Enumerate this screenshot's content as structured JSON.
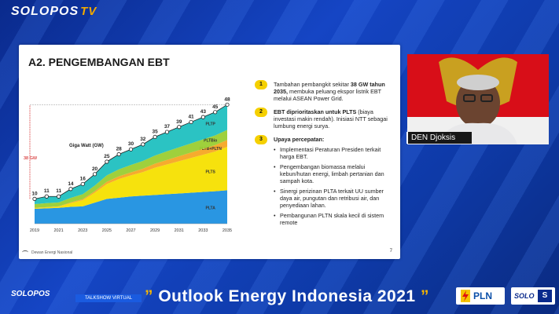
{
  "broadcast": {
    "logo_text": "SOLOPOS",
    "logo_tv": "TV",
    "lower_logo": "SOLOPOS",
    "lower_sub": "TALKSHOW VIRTUAL",
    "headline_open": "”",
    "headline": "Outlook Energy Indonesia 2021",
    "headline_close": "”",
    "sponsor_pln": "PLN",
    "sponsor_solo": "SOLO",
    "sponsor_solo_badge": "S"
  },
  "participant": {
    "name": "DEN Djoksis"
  },
  "slide": {
    "title": "A2. PENGEMBANGAN EBT",
    "footer": "Dewan Energi Nasional",
    "page": "7",
    "notes": [
      {
        "num": "1",
        "bold": "38 GW tahun 2035,",
        "pre": "Tambahan pembangkit sekitar ",
        "post": " membuka peluang ekspor listrik EBT melalui ASEAN Power Grid."
      },
      {
        "num": "2",
        "bold": "EBT diprioritaskan untuk PLTS",
        "pre": "",
        "post": " (biaya investasi makin rendah). Inisiasi NTT sebagai lumbung energi surya."
      },
      {
        "num": "3",
        "bold": "Upaya percepatan:",
        "pre": "",
        "post": ""
      }
    ],
    "bullets": [
      "Implementasi Peraturan Presiden terkait harga EBT.",
      "Pengembangan biomassa melalui kebun/hutan energi, limbah pertanian dan sampah kota.",
      "Sinergi perizinan PLTA terkait UU sumber daya air, pungutan dan retribusi air, dan penyediaan lahan.",
      "Pembangunan PLTN skala kecil di sistem remote"
    ]
  },
  "chart_data": {
    "type": "area",
    "ylabel": "Giga Watt (GW)",
    "annotation": "38 GW",
    "x": [
      2019,
      2020,
      2021,
      2022,
      2023,
      2024,
      2025,
      2026,
      2027,
      2028,
      2029,
      2030,
      2031,
      2032,
      2033,
      2034,
      2035
    ],
    "x_tick_labels": [
      "2019",
      "2021",
      "2023",
      "2025",
      "2027",
      "2029",
      "2031",
      "2033",
      "2035"
    ],
    "total_labels": [
      10,
      11,
      11,
      14,
      16,
      20,
      25,
      28,
      30,
      32,
      35,
      37,
      39,
      41,
      43,
      45,
      48
    ],
    "series": [
      {
        "name": "PLTA",
        "color": "#1e90e0",
        "values": [
          6,
          6.2,
          6.4,
          6.8,
          7,
          8.5,
          10,
          10.5,
          11,
          11.3,
          11.6,
          11.9,
          12.2,
          12.5,
          12.8,
          13.1,
          13.5
        ]
      },
      {
        "name": "PLTS",
        "color": "#f5e000",
        "values": [
          0.3,
          0.4,
          0.5,
          1.5,
          2.5,
          4,
          6,
          7.5,
          8.5,
          9.5,
          11,
          12,
          13,
          14,
          15,
          16,
          17.5
        ]
      },
      {
        "name": "PLTB+PLTN",
        "color": "#f5a623",
        "values": [
          0.1,
          0.1,
          0.1,
          0.3,
          0.4,
          0.6,
          0.9,
          1.1,
          1.2,
          1.4,
          1.6,
          1.8,
          2,
          2.2,
          2.4,
          2.6,
          2.8
        ]
      },
      {
        "name": "PLTBio",
        "color": "#9acd32",
        "values": [
          1.5,
          1.6,
          1.6,
          1.8,
          2,
          2.3,
          2.6,
          2.8,
          3,
          3.1,
          3.3,
          3.5,
          3.6,
          3.7,
          3.8,
          3.9,
          4
        ]
      },
      {
        "name": "PLTP",
        "color": "#20c0c0",
        "values": [
          2.1,
          2.7,
          2.4,
          3.6,
          4.1,
          4.6,
          5.5,
          6.1,
          6.3,
          6.7,
          7.5,
          7.8,
          8.2,
          8.6,
          9,
          9.4,
          10.2
        ]
      }
    ],
    "ylim": [
      0,
      50
    ]
  },
  "colors": {
    "accent_yellow": "#f5d000",
    "bg_blue": "#1545c4"
  }
}
